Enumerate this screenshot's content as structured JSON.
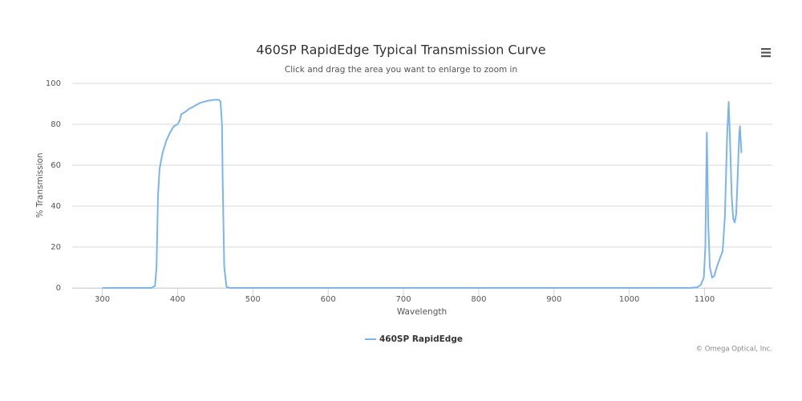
{
  "chart_data": {
    "type": "line",
    "title": "460SP RapidEdge Typical Transmission Curve",
    "subtitle": "Click and drag the area you want to enlarge to zoom in",
    "x_label": "Wavelength",
    "y_label": "% Transmission",
    "credits": "© Omega Optical, Inc.",
    "x": [
      300,
      365,
      370,
      372,
      374,
      376,
      380,
      385,
      390,
      395,
      400,
      403,
      405,
      410,
      415,
      420,
      425,
      430,
      435,
      440,
      445,
      450,
      455,
      457,
      459,
      460,
      462,
      465,
      470,
      1080,
      1090,
      1095,
      1099,
      1101,
      1103,
      1105,
      1107,
      1110,
      1113,
      1116,
      1120,
      1124,
      1127,
      1130,
      1132,
      1134,
      1136,
      1138,
      1140,
      1142,
      1144,
      1146,
      1147,
      1148,
      1149
    ],
    "series": [
      {
        "name": "460SP RapidEdge",
        "color": "#7cb5ec",
        "values": [
          0,
          0,
          1,
          10,
          45,
          58,
          66,
          72,
          76,
          79,
          80,
          82,
          85,
          86,
          87.5,
          88.5,
          89.5,
          90.5,
          91,
          91.5,
          91.8,
          92,
          92,
          91,
          80,
          50,
          10,
          0.5,
          0,
          0,
          0.3,
          1.5,
          5,
          20,
          76,
          30,
          10,
          5,
          6,
          10,
          14,
          18,
          35,
          75,
          91,
          70,
          45,
          34,
          32,
          36,
          55,
          75,
          79,
          72,
          66
        ]
      }
    ],
    "xlim": [
      260,
      1190
    ],
    "xticks": [
      300,
      400,
      500,
      600,
      700,
      800,
      900,
      1000,
      1100
    ],
    "ylim": [
      0,
      100
    ],
    "yticks": [
      0,
      20,
      40,
      60,
      80,
      100
    ],
    "grid": true,
    "legend": "bottom"
  }
}
